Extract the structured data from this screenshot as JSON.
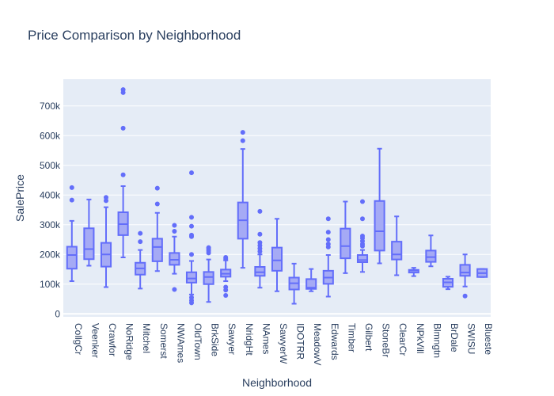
{
  "chart_data": {
    "type": "box",
    "title": "Price Comparison by Neighborhood",
    "xlabel": "Neighborhood",
    "ylabel": "SalePrice",
    "ylim": [
      -10000,
      790000
    ],
    "yticks": [
      {
        "value": 0,
        "label": "0"
      },
      {
        "value": 100000,
        "label": "100k"
      },
      {
        "value": 200000,
        "label": "200k"
      },
      {
        "value": 300000,
        "label": "300k"
      },
      {
        "value": 400000,
        "label": "400k"
      },
      {
        "value": 500000,
        "label": "500k"
      },
      {
        "value": 600000,
        "label": "600k"
      },
      {
        "value": 700000,
        "label": "700k"
      }
    ],
    "grid": true,
    "colors": {
      "box_line": "#636efa",
      "box_fill": "#a5aaf5",
      "plot_bg": "#e5ecf6",
      "grid": "#ffffff",
      "text": "#2a3f5f"
    },
    "boxes": [
      {
        "name": "CollgCr",
        "lowerfence": 110000,
        "q1": 152000,
        "median": 198000,
        "q3": 226000,
        "upperfence": 313000,
        "outliers": [
          383000,
          425000
        ]
      },
      {
        "name": "Veenker",
        "lowerfence": 162000,
        "q1": 184000,
        "median": 218000,
        "q3": 288000,
        "upperfence": 385000,
        "outliers": []
      },
      {
        "name": "Crawfor",
        "lowerfence": 90000,
        "q1": 159000,
        "median": 200000,
        "q3": 239000,
        "upperfence": 359000,
        "outliers": [
          381000,
          392000
        ]
      },
      {
        "name": "NoRidge",
        "lowerfence": 190000,
        "q1": 265000,
        "median": 302000,
        "q3": 342000,
        "upperfence": 430000,
        "outliers": [
          468000,
          625000,
          745000,
          755000
        ]
      },
      {
        "name": "Mitchel",
        "lowerfence": 85000,
        "q1": 132000,
        "median": 153000,
        "q3": 172000,
        "upperfence": 215000,
        "outliers": [
          243000,
          271000
        ]
      },
      {
        "name": "Somerst",
        "lowerfence": 144000,
        "q1": 177000,
        "median": 225000,
        "q3": 253000,
        "upperfence": 340000,
        "outliers": [
          370000,
          423000
        ]
      },
      {
        "name": "NWAmes",
        "lowerfence": 135000,
        "q1": 165000,
        "median": 182000,
        "q3": 205000,
        "upperfence": 260000,
        "outliers": [
          278000,
          298000,
          82000
        ]
      },
      {
        "name": "OldTown",
        "lowerfence": 65000,
        "q1": 105000,
        "median": 119000,
        "q3": 140000,
        "upperfence": 178000,
        "outliers": [
          200000,
          260000,
          265000,
          295000,
          325000,
          475000,
          55000,
          45000,
          37000
        ]
      },
      {
        "name": "BrkSide",
        "lowerfence": 40000,
        "q1": 100000,
        "median": 124000,
        "q3": 141000,
        "upperfence": 183000,
        "outliers": [
          205000,
          212000,
          218000,
          223000
        ]
      },
      {
        "name": "Sawyer",
        "lowerfence": 110000,
        "q1": 125000,
        "median": 135000,
        "q3": 149000,
        "upperfence": 180000,
        "outliers": [
          185000,
          190000,
          90000,
          80000,
          62000
        ]
      },
      {
        "name": "NridgHt",
        "lowerfence": 155000,
        "q1": 253000,
        "median": 315000,
        "q3": 375000,
        "upperfence": 555000,
        "outliers": [
          583000,
          611000
        ]
      },
      {
        "name": "NAmes",
        "lowerfence": 88000,
        "q1": 128000,
        "median": 140000,
        "q3": 158000,
        "upperfence": 200000,
        "outliers": [
          210000,
          220000,
          230000,
          240000,
          268000,
          345000
        ]
      },
      {
        "name": "SawyerW",
        "lowerfence": 76000,
        "q1": 145000,
        "median": 180000,
        "q3": 223000,
        "upperfence": 320000,
        "outliers": []
      },
      {
        "name": "IDOTRR",
        "lowerfence": 34000,
        "q1": 82000,
        "median": 103000,
        "q3": 122000,
        "upperfence": 169000,
        "outliers": []
      },
      {
        "name": "MeadowV",
        "lowerfence": 76000,
        "q1": 84000,
        "median": 88000,
        "q3": 117000,
        "upperfence": 151000,
        "outliers": []
      },
      {
        "name": "Edwards",
        "lowerfence": 58000,
        "q1": 101000,
        "median": 122000,
        "q3": 145000,
        "upperfence": 198000,
        "outliers": [
          225000,
          235000,
          250000,
          275000,
          320000
        ]
      },
      {
        "name": "Timber",
        "lowerfence": 137000,
        "q1": 187000,
        "median": 228000,
        "q3": 287000,
        "upperfence": 378000,
        "outliers": []
      },
      {
        "name": "Gilbert",
        "lowerfence": 141000,
        "q1": 174000,
        "median": 181000,
        "q3": 198000,
        "upperfence": 215000,
        "outliers": [
          228000,
          235000,
          245000,
          255000,
          262000,
          320000,
          378000
        ]
      },
      {
        "name": "StoneBr",
        "lowerfence": 170000,
        "q1": 213000,
        "median": 278000,
        "q3": 380000,
        "upperfence": 556000,
        "outliers": []
      },
      {
        "name": "ClearCr",
        "lowerfence": 130000,
        "q1": 183000,
        "median": 200000,
        "q3": 243000,
        "upperfence": 328000,
        "outliers": []
      },
      {
        "name": "NPkVill",
        "lowerfence": 127000,
        "q1": 139000,
        "median": 146000,
        "q3": 148000,
        "upperfence": 155000,
        "outliers": []
      },
      {
        "name": "Blmngtn",
        "lowerfence": 160000,
        "q1": 175000,
        "median": 191000,
        "q3": 213000,
        "upperfence": 264000,
        "outliers": []
      },
      {
        "name": "BrDale",
        "lowerfence": 83000,
        "q1": 91000,
        "median": 106000,
        "q3": 118000,
        "upperfence": 125000,
        "outliers": []
      },
      {
        "name": "SWISU",
        "lowerfence": 92000,
        "q1": 128000,
        "median": 139000,
        "q3": 165000,
        "upperfence": 200000,
        "outliers": [
          60000
        ]
      },
      {
        "name": "Blueste",
        "lowerfence": 124000,
        "q1": 124000,
        "median": 137000,
        "q3": 151000,
        "upperfence": 151000,
        "outliers": []
      }
    ]
  }
}
